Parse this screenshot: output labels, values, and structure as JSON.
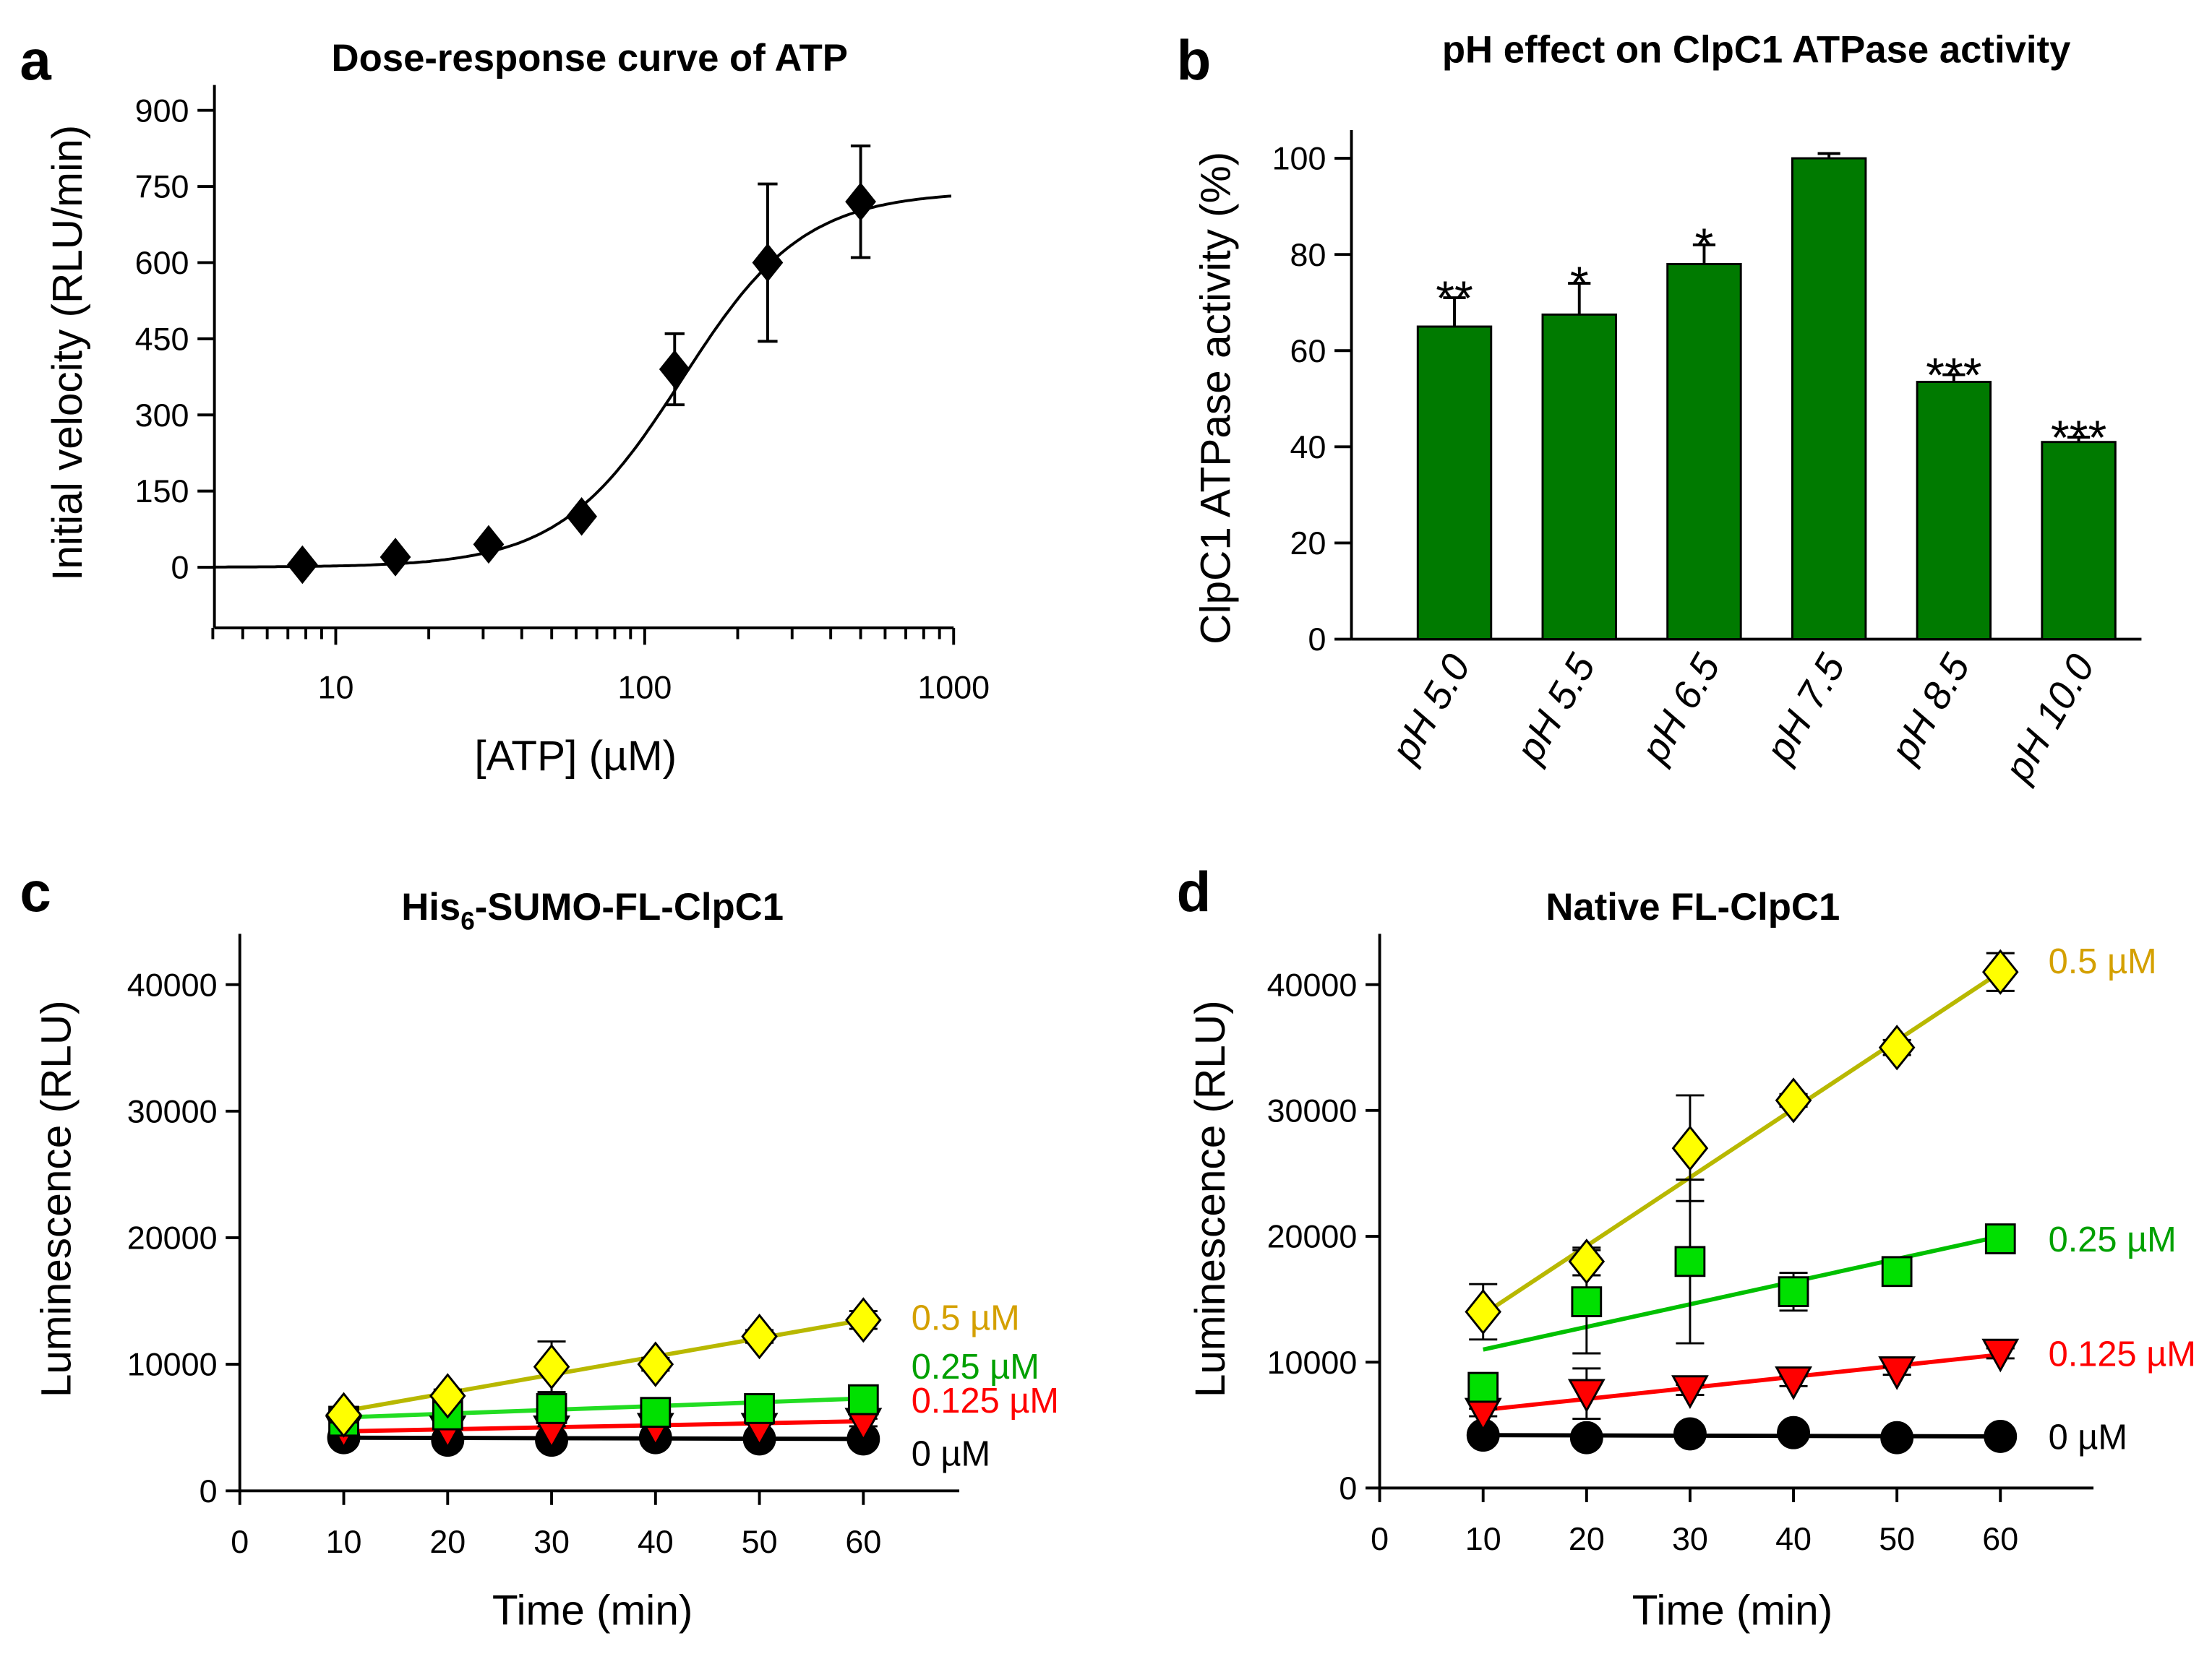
{
  "chart_data": [
    {
      "panel": "a",
      "type": "scatter",
      "title": "Dose-response curve of ATP",
      "xlabel": "[ATP] (µM)",
      "ylabel": "Initial velocity (RLU/min)",
      "xscale": "log",
      "xlim": [
        4,
        1000
      ],
      "ylim": [
        -80,
        900
      ],
      "xticks": [
        10,
        100,
        1000
      ],
      "xtick_labels": [
        "10",
        "100",
        "1000"
      ],
      "yticks": [
        0,
        150,
        300,
        450,
        600,
        750,
        900
      ],
      "ytick_labels": [
        "0",
        "150",
        "300",
        "450",
        "600",
        "750",
        "900"
      ],
      "x": [
        7.8,
        15.6,
        31.25,
        62.5,
        125,
        250,
        500
      ],
      "y": [
        5,
        20,
        45,
        100,
        390,
        600,
        720
      ],
      "err_low": [
        5,
        20,
        45,
        100,
        320,
        445,
        610
      ],
      "err_high": [
        5,
        20,
        45,
        100,
        460,
        755,
        830
      ],
      "marker": "diamond",
      "color": "#000000",
      "fit_curve": {
        "top": 740,
        "ec50": 132,
        "hill": 2.2
      }
    },
    {
      "panel": "b",
      "type": "bar",
      "title": "pH effect on ClpC1 ATPase activity",
      "ylabel": "ClpC1 ATPase activity (%)",
      "ylim": [
        0,
        105
      ],
      "yticks": [
        0,
        20,
        40,
        60,
        80,
        100
      ],
      "ytick_labels": [
        "0",
        "20",
        "40",
        "60",
        "80",
        "100"
      ],
      "categories": [
        "pH 5.0",
        "pH 5.5",
        "pH 6.5",
        "pH 7.5",
        "pH 8.5",
        "pH 10.0"
      ],
      "values": [
        65,
        67.5,
        78,
        100,
        53.5,
        41
      ],
      "err_high": [
        71,
        74,
        82,
        101,
        55,
        42
      ],
      "significance": [
        "**",
        "*",
        "*",
        "",
        "***",
        "***"
      ],
      "color": "#007a00"
    },
    {
      "panel": "c",
      "type": "scatter",
      "title": "His6-SUMO-FL-ClpC1",
      "title_main": "His",
      "title_sub": "6",
      "title_rest": "-SUMO-FL-ClpC1",
      "xlabel": "Time (min)",
      "ylabel": "Luminescence (RLU)",
      "xlim": [
        0,
        69
      ],
      "ylim": [
        0,
        44000
      ],
      "xticks": [
        0,
        10,
        20,
        30,
        40,
        50,
        60
      ],
      "xtick_labels": [
        "0",
        "10",
        "20",
        "30",
        "40",
        "50",
        "60"
      ],
      "yticks": [
        0,
        10000,
        20000,
        30000,
        40000
      ],
      "ytick_labels": [
        "0",
        "10000",
        "20000",
        "30000",
        "40000"
      ],
      "x": [
        10,
        20,
        30,
        40,
        50,
        60
      ],
      "series": [
        {
          "name": "0.5 µM",
          "marker": "diamond",
          "color": "#ffff00",
          "line_color": "#b8b800",
          "label_color": "#d4a000",
          "y": [
            6000,
            7500,
            9800,
            10000,
            12200,
            13500
          ],
          "err": [
            600,
            500,
            2000,
            500,
            500,
            700
          ],
          "fit": [
            6300,
            13500
          ]
        },
        {
          "name": "0.25 µM",
          "marker": "square",
          "color": "#00e000",
          "line_color": "#22dd22",
          "label_color": "#00a000",
          "y": [
            5500,
            6000,
            6500,
            6200,
            6500,
            7200
          ],
          "err": [
            400,
            400,
            600,
            400,
            400,
            400
          ],
          "fit": [
            5800,
            7300
          ]
        },
        {
          "name": "0.125 µM",
          "marker": "triangle-down",
          "color": "#ff0000",
          "line_color": "#ff0000",
          "label_color": "#ff0000",
          "y": [
            4800,
            4800,
            4800,
            5000,
            5000,
            5400
          ],
          "err": [
            300,
            300,
            300,
            300,
            300,
            300
          ],
          "fit": [
            4700,
            5500
          ]
        },
        {
          "name": "0 µM",
          "marker": "circle",
          "color": "#000000",
          "line_color": "#000000",
          "label_color": "#000000",
          "y": [
            4200,
            4000,
            4000,
            4200,
            4100,
            4100
          ],
          "err": [
            300,
            200,
            200,
            200,
            200,
            200
          ],
          "fit": [
            4200,
            4100
          ]
        }
      ]
    },
    {
      "panel": "d",
      "type": "scatter",
      "title": "Native FL-ClpC1",
      "xlabel": "Time (min)",
      "ylabel": "Luminescence (RLU)",
      "xlim": [
        0,
        69
      ],
      "ylim": [
        0,
        44000
      ],
      "xticks": [
        0,
        10,
        20,
        30,
        40,
        50,
        60
      ],
      "xtick_labels": [
        "0",
        "10",
        "20",
        "30",
        "40",
        "50",
        "60"
      ],
      "yticks": [
        0,
        10000,
        20000,
        30000,
        40000
      ],
      "ytick_labels": [
        "0",
        "10000",
        "20000",
        "30000",
        "40000"
      ],
      "x": [
        10,
        20,
        30,
        40,
        50,
        60
      ],
      "series": [
        {
          "name": "0.5 µM",
          "marker": "diamond",
          "color": "#ffff00",
          "line_color": "#b8b800",
          "label_color": "#d4a000",
          "y": [
            14000,
            18000,
            27000,
            30800,
            35000,
            41000
          ],
          "err": [
            2200,
            1100,
            4200,
            500,
            600,
            1500
          ],
          "fit": [
            13800,
            41000
          ]
        },
        {
          "name": "0.25 µM",
          "marker": "square",
          "color": "#00e000",
          "line_color": "#00c000",
          "label_color": "#00a000",
          "y": [
            8000,
            14800,
            18000,
            15600,
            17200,
            19800
          ],
          "err": [
            500,
            4100,
            6500,
            1500,
            1000,
            700
          ],
          "fit": [
            11000,
            20000
          ]
        },
        {
          "name": "0.125 µM",
          "marker": "triangle-down",
          "color": "#ff0000",
          "line_color": "#ff0000",
          "label_color": "#ff0000",
          "y": [
            6000,
            7500,
            7800,
            8500,
            9300,
            10700
          ],
          "err": [
            300,
            2000,
            400,
            400,
            300,
            400
          ],
          "fit": [
            6200,
            10600
          ]
        },
        {
          "name": "0 µM",
          "marker": "circle",
          "color": "#000000",
          "line_color": "#000000",
          "label_color": "#000000",
          "y": [
            4200,
            4000,
            4300,
            4400,
            4000,
            4100
          ],
          "err": [
            400,
            200,
            200,
            200,
            200,
            200
          ],
          "fit": [
            4200,
            4100
          ]
        }
      ]
    }
  ],
  "panel_letters": [
    "a",
    "b",
    "c",
    "d"
  ]
}
